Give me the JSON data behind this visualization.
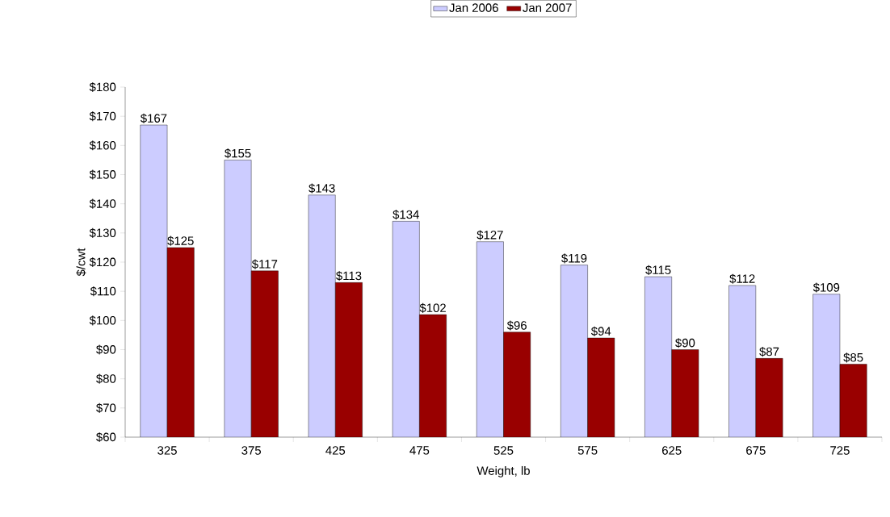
{
  "chart_data": {
    "type": "bar",
    "xlabel": "Weight, lb",
    "ylabel": "$/cwt",
    "categories": [
      "325",
      "375",
      "425",
      "475",
      "525",
      "575",
      "625",
      "675",
      "725"
    ],
    "series": [
      {
        "name": "Jan 2006",
        "color": "#ccccff",
        "values": [
          167,
          155,
          143,
          134,
          127,
          119,
          115,
          112,
          109
        ],
        "value_labels": [
          "$167",
          "$155",
          "$143",
          "$134",
          "$127",
          "$119",
          "$115",
          "$112",
          "$109"
        ]
      },
      {
        "name": "Jan 2007",
        "color": "#990000",
        "values": [
          125,
          117,
          113,
          102,
          96,
          94,
          90,
          87,
          85
        ],
        "value_labels": [
          "$125",
          "$117",
          "$113",
          "$102",
          "$96",
          "$94",
          "$90",
          "$87",
          "$85"
        ]
      }
    ],
    "ylim": [
      60,
      180
    ],
    "yticks": [
      {
        "value": 60,
        "label": "$60"
      },
      {
        "value": 70,
        "label": "$70"
      },
      {
        "value": 80,
        "label": "$80"
      },
      {
        "value": 90,
        "label": "$90"
      },
      {
        "value": 100,
        "label": "$100"
      },
      {
        "value": 110,
        "label": "$110"
      },
      {
        "value": 120,
        "label": "$120"
      },
      {
        "value": 130,
        "label": "$130"
      },
      {
        "value": 140,
        "label": "$140"
      },
      {
        "value": 150,
        "label": "$150"
      },
      {
        "value": 160,
        "label": "$160"
      },
      {
        "value": 170,
        "label": "$170"
      },
      {
        "value": 180,
        "label": "$180"
      }
    ],
    "grid": false,
    "legend": "top"
  }
}
